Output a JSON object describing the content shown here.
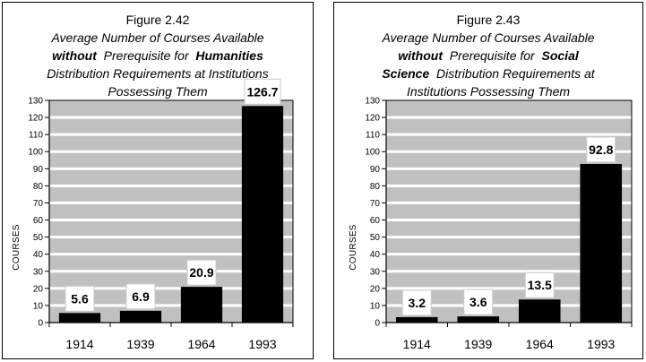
{
  "chart_data": [
    {
      "type": "bar",
      "figure_label": "Figure 2.42",
      "title_lines": [
        [
          {
            "text": "Average Number of Courses Available",
            "bold": false
          }
        ],
        [
          {
            "text": "without",
            "bold": true
          },
          {
            "text": "  Prerequisite for  ",
            "bold": false
          },
          {
            "text": "Humanities",
            "bold": true
          }
        ],
        [
          {
            "text": "Distribution Requirements at Institutions",
            "bold": false
          }
        ],
        [
          {
            "text": "Possessing Them",
            "bold": false
          }
        ]
      ],
      "title": "Figure 2.42 Average Number of Courses Available without Prerequisite for Humanities Distribution Requirements at Institutions Possessing Them",
      "xlabel": "",
      "ylabel": "COURSES",
      "categories": [
        "1914",
        "1939",
        "1964",
        "1993"
      ],
      "values": [
        5.6,
        6.9,
        20.9,
        126.7
      ],
      "data_labels": [
        "5.6",
        "6.9",
        "20.9",
        "126.7"
      ],
      "ylim": [
        0,
        130
      ],
      "yticks": [
        0,
        10,
        20,
        30,
        40,
        50,
        60,
        70,
        80,
        90,
        100,
        110,
        120,
        130
      ],
      "grid": true,
      "legend": "none"
    },
    {
      "type": "bar",
      "figure_label": "Figure 2.43",
      "title_lines": [
        [
          {
            "text": "Average Number of Courses Available",
            "bold": false
          }
        ],
        [
          {
            "text": "without",
            "bold": true
          },
          {
            "text": "  Prerequisite for  ",
            "bold": false
          },
          {
            "text": "Social",
            "bold": true
          }
        ],
        [
          {
            "text": "Science",
            "bold": true
          },
          {
            "text": "  Distribution Requirements at",
            "bold": false
          }
        ],
        [
          {
            "text": "Institutions Possessing Them",
            "bold": false
          }
        ]
      ],
      "title": "Figure 2.43 Average Number of Courses Available without Prerequisite for Social Science Distribution Requirements at Institutions Possessing Them",
      "xlabel": "",
      "ylabel": "COURSES",
      "categories": [
        "1914",
        "1939",
        "1964",
        "1993"
      ],
      "values": [
        3.2,
        3.6,
        13.5,
        92.8
      ],
      "data_labels": [
        "3.2",
        "3.6",
        "13.5",
        "92.8"
      ],
      "ylim": [
        0,
        130
      ],
      "yticks": [
        0,
        10,
        20,
        30,
        40,
        50,
        60,
        70,
        80,
        90,
        100,
        110,
        120,
        130
      ],
      "grid": true,
      "legend": "none"
    }
  ],
  "colors": {
    "plot_background": "#c0c0c0",
    "gridline": "#ffffff",
    "bar": "#000000",
    "label_box": "#ffffff",
    "label_box_border": "#c8c8c8"
  }
}
